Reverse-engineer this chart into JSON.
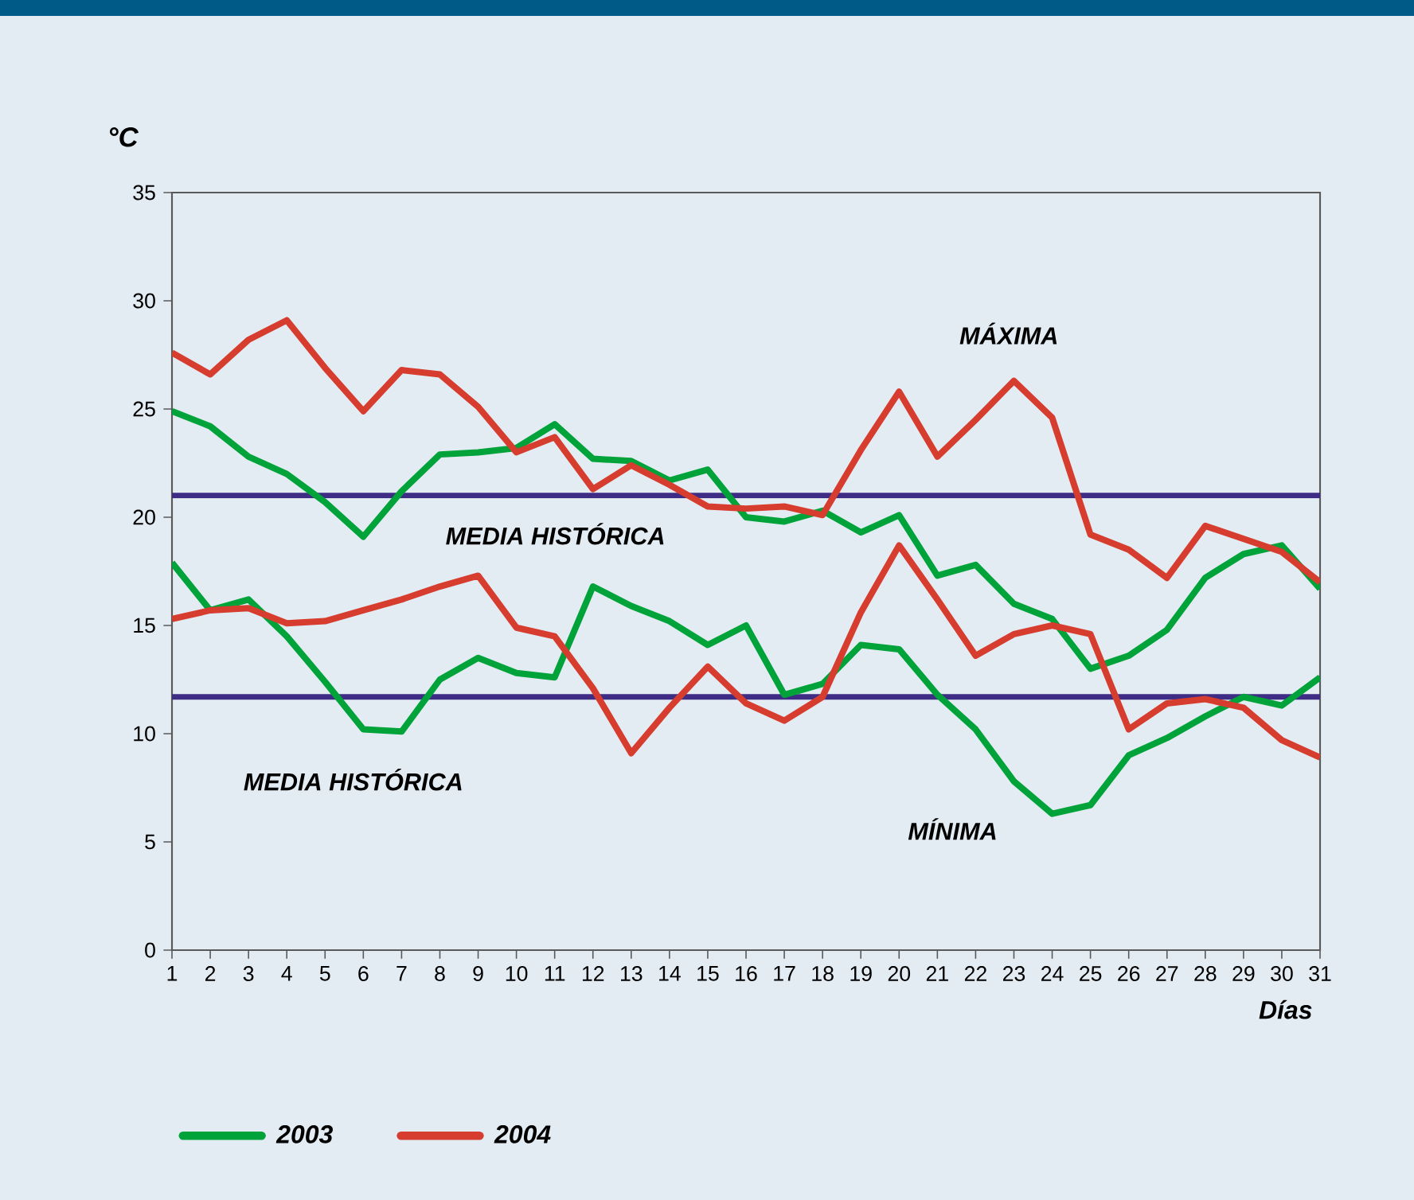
{
  "chart_data": {
    "type": "line",
    "xlabel": "Días",
    "ylabel": "°C",
    "x": [
      1,
      2,
      3,
      4,
      5,
      6,
      7,
      8,
      9,
      10,
      11,
      12,
      13,
      14,
      15,
      16,
      17,
      18,
      19,
      20,
      21,
      22,
      23,
      24,
      25,
      26,
      27,
      28,
      29,
      30,
      31
    ],
    "series": [
      {
        "name": "2003",
        "color": "#00a33a",
        "values": [
          24.9,
          24.2,
          22.8,
          22.0,
          20.7,
          19.1,
          21.2,
          22.9,
          23.0,
          23.2,
          24.3,
          22.7,
          22.6,
          21.7,
          22.2,
          20.0,
          19.8,
          20.3,
          19.3,
          20.1,
          17.3,
          17.8,
          16.0,
          15.3,
          13.0,
          13.6,
          14.8,
          17.2,
          18.3,
          18.7,
          16.7
        ]
      },
      {
        "name": "2004",
        "color": "#d63d2e",
        "values": [
          27.6,
          26.6,
          28.2,
          29.1,
          26.9,
          24.9,
          26.8,
          26.6,
          25.1,
          23.0,
          23.7,
          21.3,
          22.4,
          21.5,
          20.5,
          20.4,
          20.5,
          20.1,
          23.1,
          25.8,
          22.8,
          24.5,
          26.3,
          24.6,
          19.2,
          18.5,
          17.2,
          19.6,
          19.0,
          18.4,
          17.0
        ]
      },
      {
        "color": "#00a33a",
        "values": [
          17.9,
          15.7,
          16.2,
          14.5,
          12.4,
          10.2,
          10.1,
          12.5,
          13.5,
          12.8,
          12.6,
          16.8,
          15.9,
          15.2,
          14.1,
          15.0,
          11.8,
          12.3,
          14.1,
          13.9,
          11.8,
          10.2,
          7.8,
          6.3,
          6.7,
          9.0,
          9.8,
          10.8,
          11.7,
          11.3,
          12.6
        ]
      },
      {
        "color": "#d63d2e",
        "values": [
          15.3,
          15.7,
          15.8,
          15.1,
          15.2,
          15.7,
          16.2,
          16.8,
          17.3,
          14.9,
          14.5,
          12.1,
          9.1,
          11.2,
          13.1,
          11.4,
          10.6,
          11.7,
          15.6,
          18.7,
          16.2,
          13.6,
          14.6,
          15.0,
          14.6,
          10.2,
          11.4,
          11.6,
          11.2,
          9.7,
          8.9
        ]
      }
    ],
    "xlim": [
      1,
      31
    ],
    "xticks": [
      1,
      2,
      3,
      4,
      5,
      6,
      7,
      8,
      9,
      10,
      11,
      12,
      13,
      14,
      15,
      16,
      17,
      18,
      19,
      20,
      21,
      22,
      23,
      24,
      25,
      26,
      27,
      28,
      29,
      30,
      31
    ],
    "ylim": [
      0,
      35
    ],
    "yticks": [
      0,
      5,
      10,
      15,
      20,
      25,
      30,
      35
    ],
    "ref_lines": [
      {
        "axis": "y",
        "value": 21,
        "label": "MEDIA HISTÓRICA",
        "color": "#3f2d85"
      },
      {
        "axis": "y",
        "value": 11.7,
        "label": "MEDIA HISTÓRICA",
        "color": "#3f2d85"
      }
    ],
    "annotations": [
      "MÁXIMA",
      "MÍNIMA"
    ],
    "legend": "bottom left",
    "marker": "none",
    "line_style": "solid",
    "grid": false
  }
}
